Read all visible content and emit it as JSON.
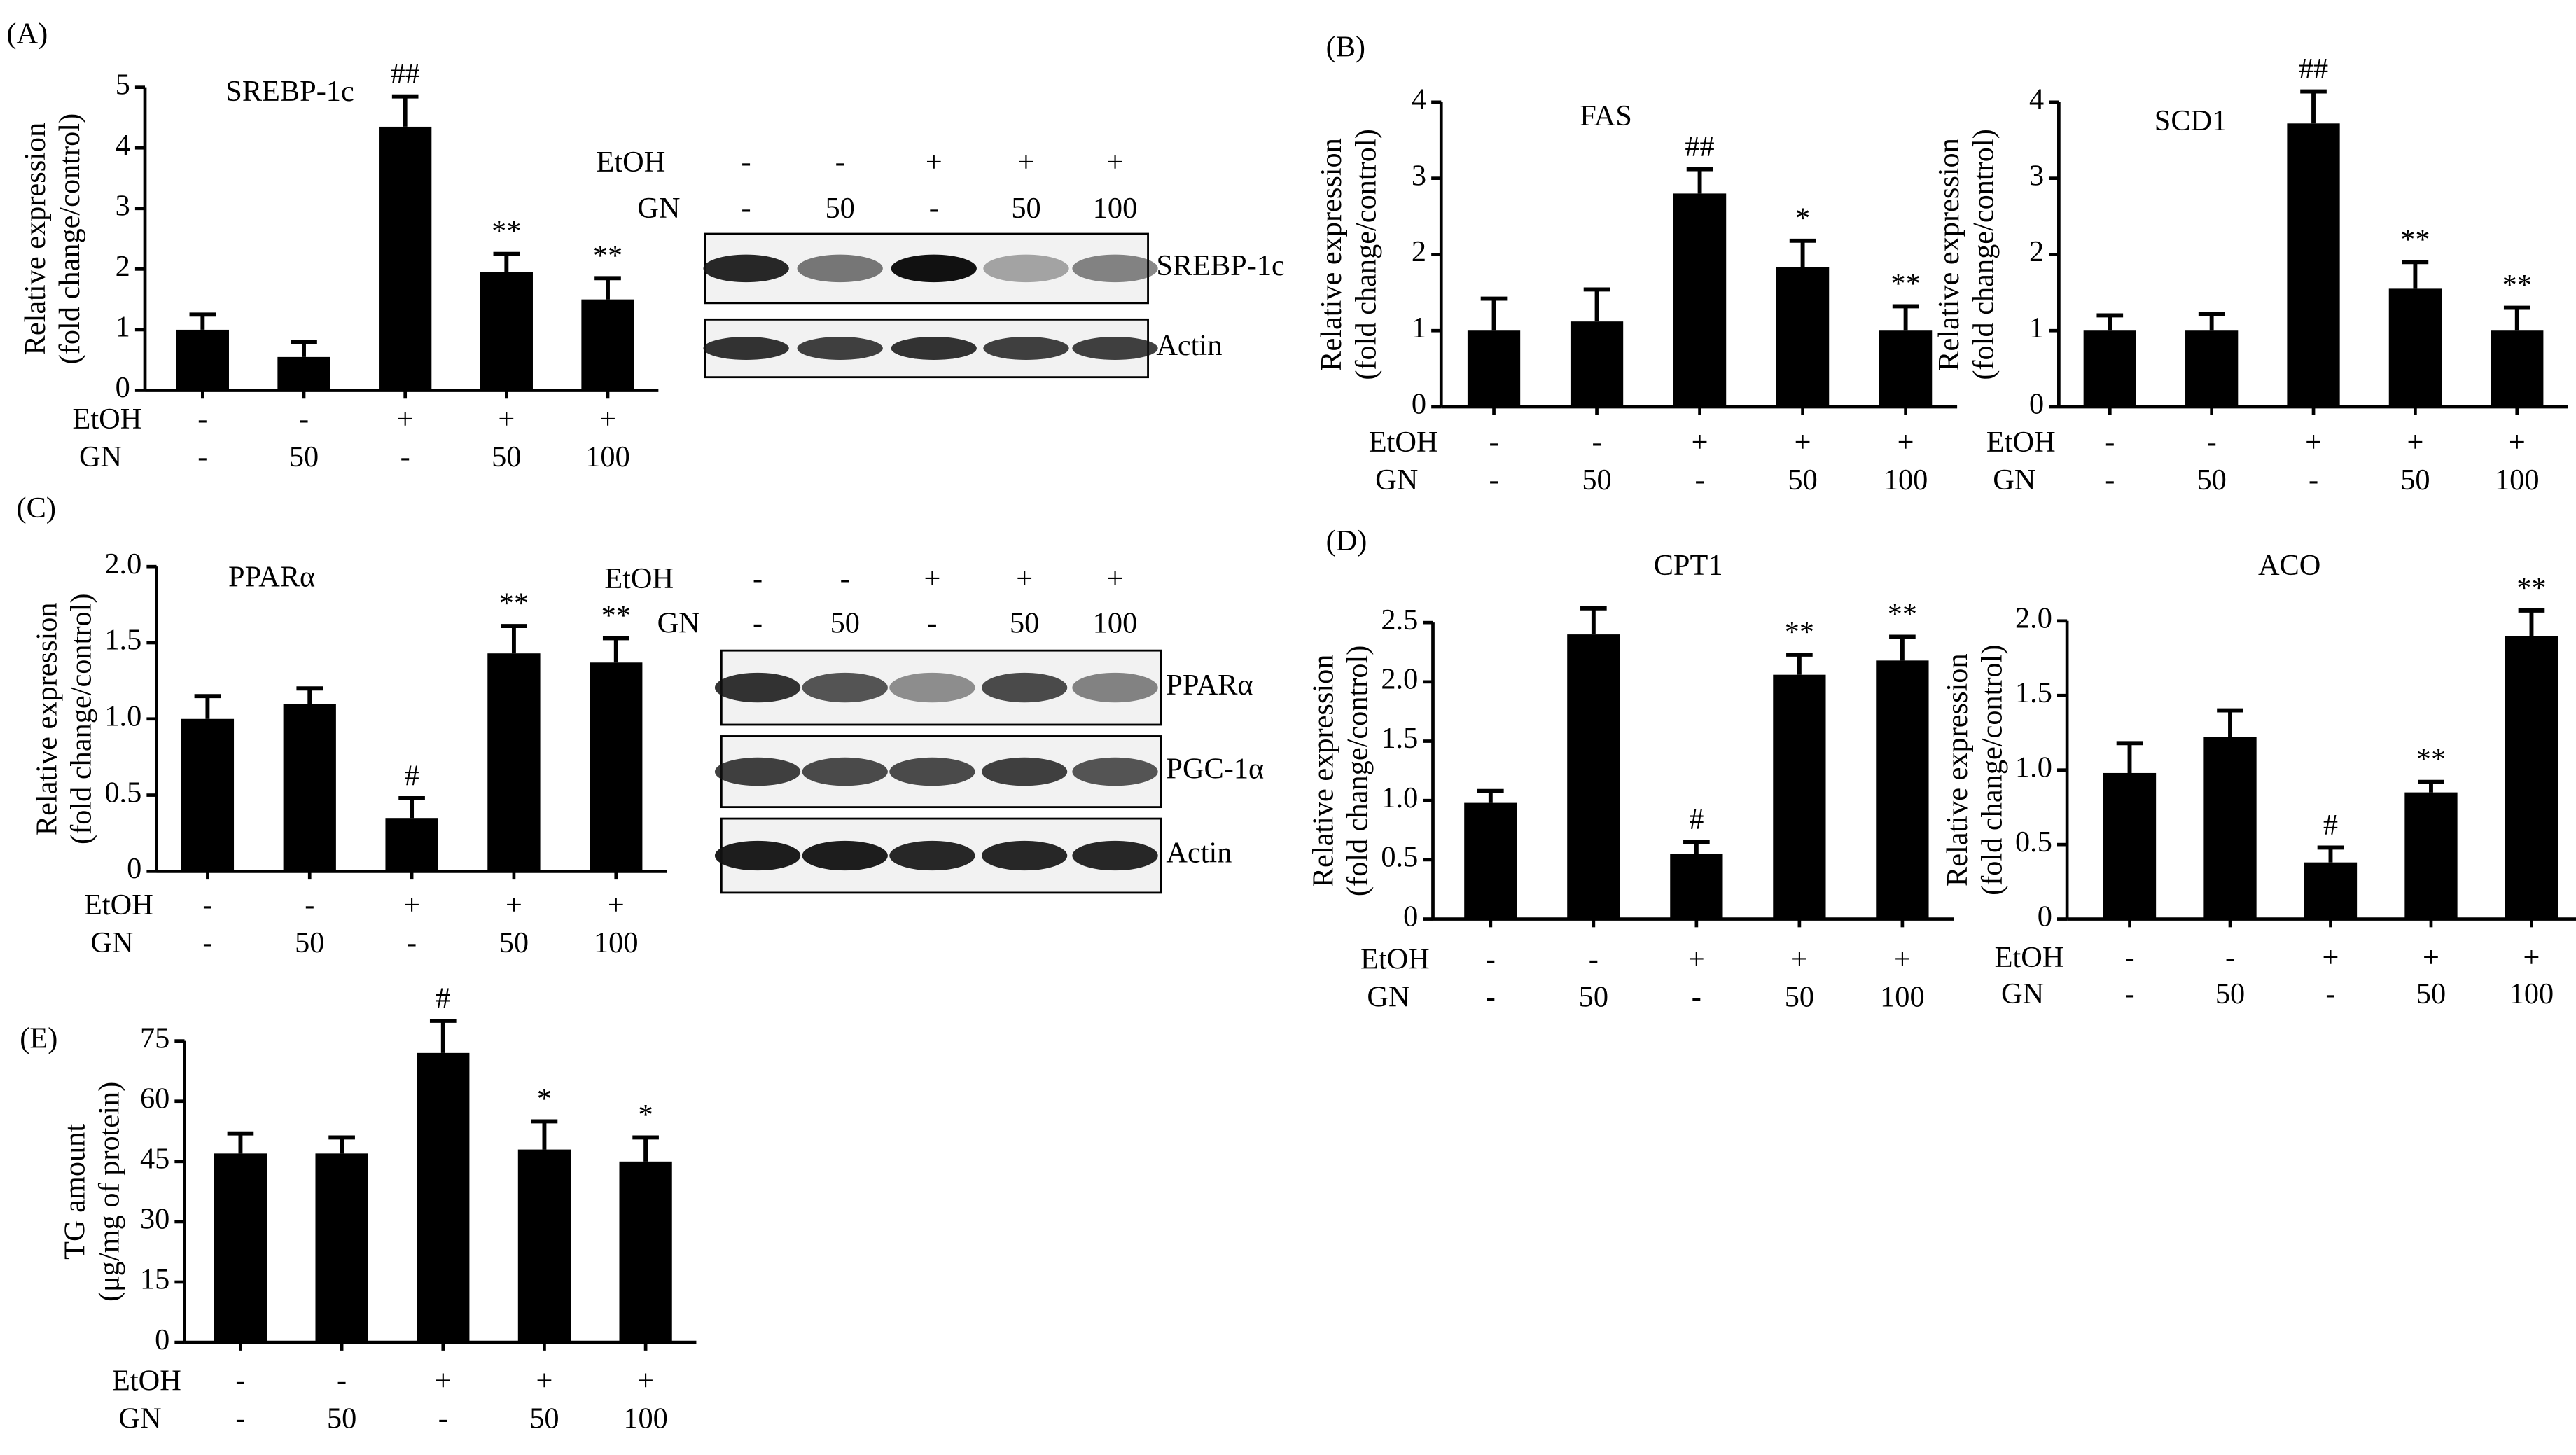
{
  "chart_data": [
    {
      "type": "bar",
      "panel": "(A)",
      "title": "SREBP-1c",
      "ylabel": [
        "Relative expression",
        "(fold change/control)"
      ],
      "treatments": [
        {
          "name": "EtOH",
          "values": [
            "-",
            "-",
            "+",
            "+",
            "+"
          ]
        },
        {
          "name": "GN",
          "values": [
            "-",
            "50",
            "-",
            "50",
            "100"
          ]
        }
      ],
      "values": [
        1.0,
        0.55,
        4.35,
        1.95,
        1.5
      ],
      "errors": [
        0.25,
        0.25,
        0.5,
        0.3,
        0.35
      ],
      "annotations": [
        null,
        null,
        "##",
        "**",
        "**"
      ],
      "color": "#000000",
      "ylim": [
        0,
        5
      ],
      "yticks": [
        0,
        1,
        2,
        3,
        4,
        5
      ]
    },
    {
      "type": "bar",
      "panel": "(B)",
      "title": "FAS",
      "ylabel": [
        "Relative expression",
        "(fold change/control)"
      ],
      "treatments": [
        {
          "name": "EtOH",
          "values": [
            "-",
            "-",
            "+",
            "+",
            "+"
          ]
        },
        {
          "name": "GN",
          "values": [
            "-",
            "50",
            "-",
            "50",
            "100"
          ]
        }
      ],
      "values": [
        1.0,
        1.12,
        2.8,
        1.83,
        1.0
      ],
      "errors": [
        0.42,
        0.42,
        0.32,
        0.35,
        0.32
      ],
      "annotations": [
        null,
        null,
        "##",
        "*",
        "**"
      ],
      "color": "#000000",
      "ylim": [
        0,
        4
      ],
      "yticks": [
        0,
        1,
        2,
        3,
        4
      ]
    },
    {
      "type": "bar",
      "title": "SCD1",
      "ylabel": [
        "Relative expression",
        "(fold change/control)"
      ],
      "treatments": [
        {
          "name": "EtOH",
          "values": [
            "-",
            "-",
            "+",
            "+",
            "+"
          ]
        },
        {
          "name": "GN",
          "values": [
            "-",
            "50",
            "-",
            "50",
            "100"
          ]
        }
      ],
      "values": [
        1.0,
        1.0,
        3.72,
        1.55,
        1.0
      ],
      "errors": [
        0.2,
        0.22,
        0.42,
        0.35,
        0.3
      ],
      "annotations": [
        null,
        null,
        "##",
        "**",
        "**"
      ],
      "color": "#000000",
      "ylim": [
        0,
        4
      ],
      "yticks": [
        0,
        1,
        2,
        3,
        4
      ]
    },
    {
      "type": "bar",
      "panel": "(C)",
      "title": "PPARα",
      "ylabel": [
        "Relative expression",
        "(fold change/control)"
      ],
      "treatments": [
        {
          "name": "EtOH",
          "values": [
            "-",
            "-",
            "+",
            "+",
            "+"
          ]
        },
        {
          "name": "GN",
          "values": [
            "-",
            "50",
            "-",
            "50",
            "100"
          ]
        }
      ],
      "values": [
        1.0,
        1.1,
        0.35,
        1.43,
        1.37
      ],
      "errors": [
        0.15,
        0.1,
        0.13,
        0.18,
        0.16
      ],
      "annotations": [
        null,
        null,
        "#",
        "**",
        "**"
      ],
      "color": "#000000",
      "ylim": [
        0,
        2
      ],
      "yticks": [
        0,
        0.5,
        {
          "value": 1,
          "label": "1.0"
        },
        1.5,
        {
          "value": 2,
          "label": "2.0"
        }
      ]
    },
    {
      "type": "bar",
      "panel": "(D)",
      "title": "CPT1",
      "ylabel": [
        "Relative expression",
        "(fold change/control)"
      ],
      "treatments": [
        {
          "name": "EtOH",
          "values": [
            "-",
            "-",
            "+",
            "+",
            "+"
          ]
        },
        {
          "name": "GN",
          "values": [
            "-",
            "50",
            "-",
            "50",
            "100"
          ]
        }
      ],
      "values": [
        0.98,
        2.4,
        0.55,
        2.06,
        2.18
      ],
      "errors": [
        0.1,
        0.22,
        0.1,
        0.17,
        0.2
      ],
      "annotations": [
        null,
        null,
        "#",
        "**",
        "**"
      ],
      "color": "#000000",
      "ylim": [
        0,
        2.5
      ],
      "yticks": [
        0,
        0.5,
        {
          "value": 1,
          "label": "1.0"
        },
        1.5,
        {
          "value": 2,
          "label": "2.0"
        },
        2.5
      ]
    },
    {
      "type": "bar",
      "title": "ACO",
      "ylabel": [
        "Relative expression",
        "(fold change/control)"
      ],
      "treatments": [
        {
          "name": "EtOH",
          "values": [
            "-",
            "-",
            "+",
            "+",
            "+"
          ]
        },
        {
          "name": "GN",
          "values": [
            "-",
            "50",
            "-",
            "50",
            "100"
          ]
        }
      ],
      "values": [
        0.98,
        1.22,
        0.38,
        0.85,
        1.9
      ],
      "errors": [
        0.2,
        0.18,
        0.1,
        0.07,
        0.17
      ],
      "annotations": [
        null,
        null,
        "#",
        "**",
        "**"
      ],
      "color": "#000000",
      "ylim": [
        0,
        2
      ],
      "yticks": [
        0,
        0.5,
        {
          "value": 1,
          "label": "1.0"
        },
        1.5,
        {
          "value": 2,
          "label": "2.0"
        }
      ]
    },
    {
      "type": "bar",
      "panel": "(E)",
      "ylabel": [
        "TG amount",
        "(μg/mg of protein)"
      ],
      "treatments": [
        {
          "name": "EtOH",
          "values": [
            "-",
            "-",
            "+",
            "+",
            "+"
          ]
        },
        {
          "name": "GN",
          "values": [
            "-",
            "50",
            "-",
            "50",
            "100"
          ]
        }
      ],
      "values": [
        47,
        47,
        72,
        48,
        45
      ],
      "errors": [
        5,
        4,
        8,
        7,
        6
      ],
      "annotations": [
        null,
        null,
        "#",
        "*",
        "*"
      ],
      "color": "#000000",
      "ylim": [
        0,
        75
      ],
      "yticks": [
        0,
        15,
        30,
        45,
        60,
        75
      ]
    }
  ],
  "blots": [
    {
      "rows": [
        {
          "name": "EtOH",
          "values": [
            "-",
            "-",
            "+",
            "+",
            "+"
          ]
        },
        {
          "name": "GN",
          "values": [
            "-",
            "50",
            "-",
            "50",
            "100"
          ]
        }
      ],
      "bands": [
        "SREBP-1c",
        "Actin"
      ]
    },
    {
      "rows": [
        {
          "name": "EtOH",
          "values": [
            "-",
            "-",
            "+",
            "+",
            "+"
          ]
        },
        {
          "name": "GN",
          "values": [
            "-",
            "50",
            "-",
            "50",
            "100"
          ]
        }
      ],
      "bands": [
        "PPARα",
        "PGC-1α",
        "Actin"
      ]
    }
  ]
}
